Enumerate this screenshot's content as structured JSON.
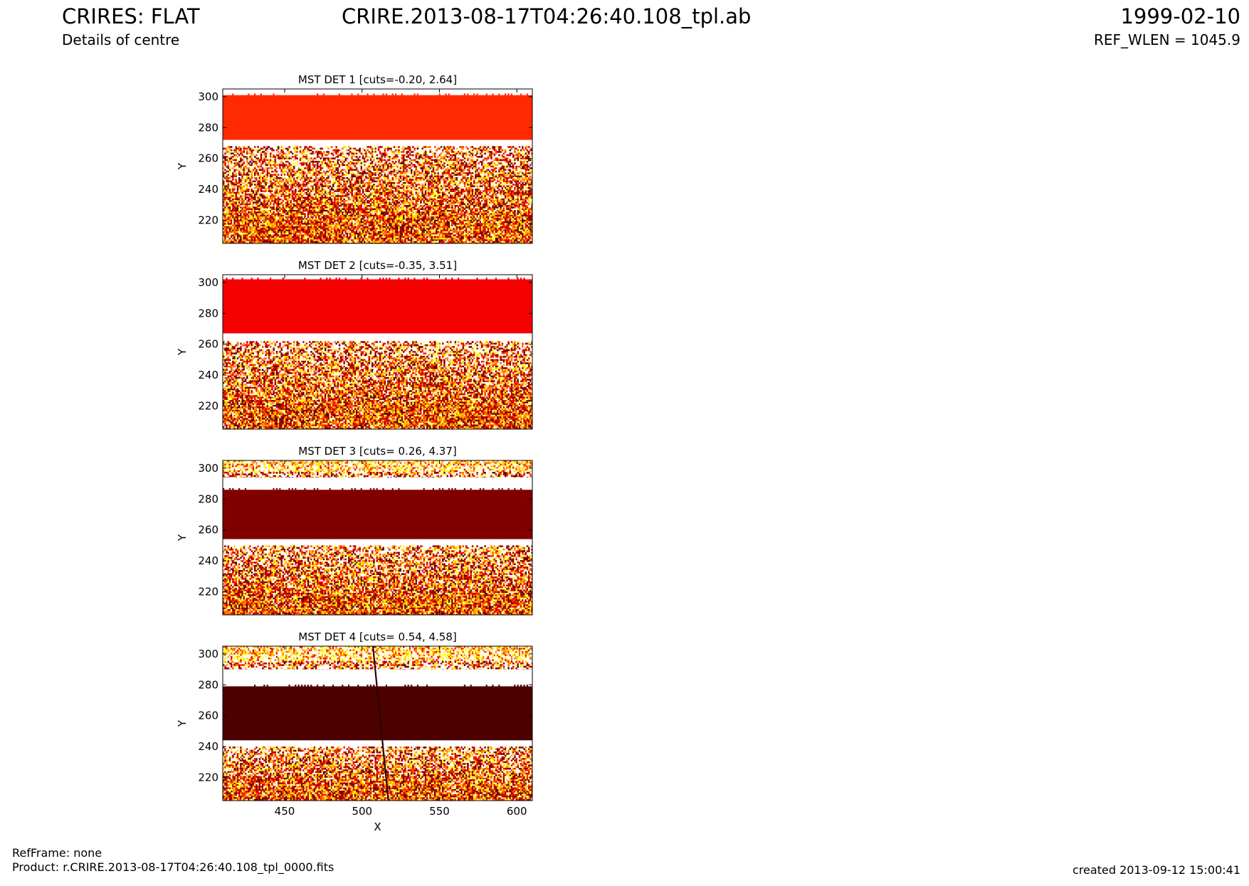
{
  "header": {
    "left_title": "CRIRES: FLAT",
    "left_subtitle": "Details of centre",
    "center_title": "CRIRE.2013-08-17T04:26:40.108_tpl.ab",
    "right_date": "1999-02-10",
    "right_ref": "REF_WLEN = 1045.9"
  },
  "footer": {
    "refframe": "RefFrame: none",
    "product": "Product: r.CRIRE.2013-08-17T04:26:40.108_tpl_0000.fits",
    "created": "created 2013-09-12 15:00:41"
  },
  "colors": {
    "colormap": "hot",
    "det1_band": "#ff2a00",
    "det2_band": "#f50000",
    "det3_band": "#800000",
    "det4_band": "#4c0000"
  },
  "chart_data": [
    {
      "type": "heatmap",
      "title": "MST DET 1 [cuts=-0.20, 2.64]",
      "xlabel": "",
      "ylabel": "Y",
      "xlim": [
        410,
        610
      ],
      "ylim": [
        205,
        305
      ],
      "xticks": [],
      "yticks": [
        220,
        240,
        260,
        280,
        300
      ],
      "bands": [
        {
          "y_from": 272,
          "y_to": 301,
          "level": "saturated-high",
          "color": "#ff2a00"
        },
        {
          "y_from": 268,
          "y_to": 272,
          "level": "white",
          "color": "#ffffff"
        },
        {
          "y_from": 205,
          "y_to": 268,
          "level": "noise",
          "color": "mixed"
        }
      ]
    },
    {
      "type": "heatmap",
      "title": "MST DET 2 [cuts=-0.35, 3.51]",
      "xlabel": "",
      "ylabel": "Y",
      "xlim": [
        410,
        610
      ],
      "ylim": [
        205,
        305
      ],
      "xticks": [],
      "yticks": [
        220,
        240,
        260,
        280,
        300
      ],
      "bands": [
        {
          "y_from": 267,
          "y_to": 302,
          "level": "saturated-high",
          "color": "#f50000"
        },
        {
          "y_from": 262,
          "y_to": 267,
          "level": "white",
          "color": "#ffffff"
        },
        {
          "y_from": 205,
          "y_to": 262,
          "level": "noise",
          "color": "mixed"
        }
      ]
    },
    {
      "type": "heatmap",
      "title": "MST DET 3 [cuts= 0.26, 4.37]",
      "xlabel": "",
      "ylabel": "Y",
      "xlim": [
        410,
        610
      ],
      "ylim": [
        205,
        305
      ],
      "xticks": [],
      "yticks": [
        220,
        240,
        260,
        280,
        300
      ],
      "bands": [
        {
          "y_from": 294,
          "y_to": 305,
          "level": "noise-light",
          "color": "mixed"
        },
        {
          "y_from": 286,
          "y_to": 294,
          "level": "white",
          "color": "#ffffff"
        },
        {
          "y_from": 254,
          "y_to": 286,
          "level": "saturated-low",
          "color": "#800000"
        },
        {
          "y_from": 250,
          "y_to": 254,
          "level": "white",
          "color": "#ffffff"
        },
        {
          "y_from": 205,
          "y_to": 250,
          "level": "noise",
          "color": "mixed"
        }
      ]
    },
    {
      "type": "heatmap",
      "title": "MST DET 4 [cuts= 0.54, 4.58]",
      "xlabel": "X",
      "ylabel": "Y",
      "xlim": [
        410,
        610
      ],
      "ylim": [
        205,
        305
      ],
      "xticks": [
        450,
        500,
        550,
        600
      ],
      "yticks": [
        220,
        240,
        260,
        280,
        300
      ],
      "bands": [
        {
          "y_from": 290,
          "y_to": 305,
          "level": "noise-light",
          "color": "mixed"
        },
        {
          "y_from": 279,
          "y_to": 290,
          "level": "white",
          "color": "#ffffff"
        },
        {
          "y_from": 244,
          "y_to": 279,
          "level": "saturated-low",
          "color": "#4c0000"
        },
        {
          "y_from": 240,
          "y_to": 244,
          "level": "white",
          "color": "#ffffff"
        },
        {
          "y_from": 205,
          "y_to": 240,
          "level": "noise",
          "color": "mixed"
        }
      ],
      "defect_line": {
        "x_start": 507,
        "y_start": 305,
        "x_end": 517,
        "y_end": 205
      }
    }
  ]
}
